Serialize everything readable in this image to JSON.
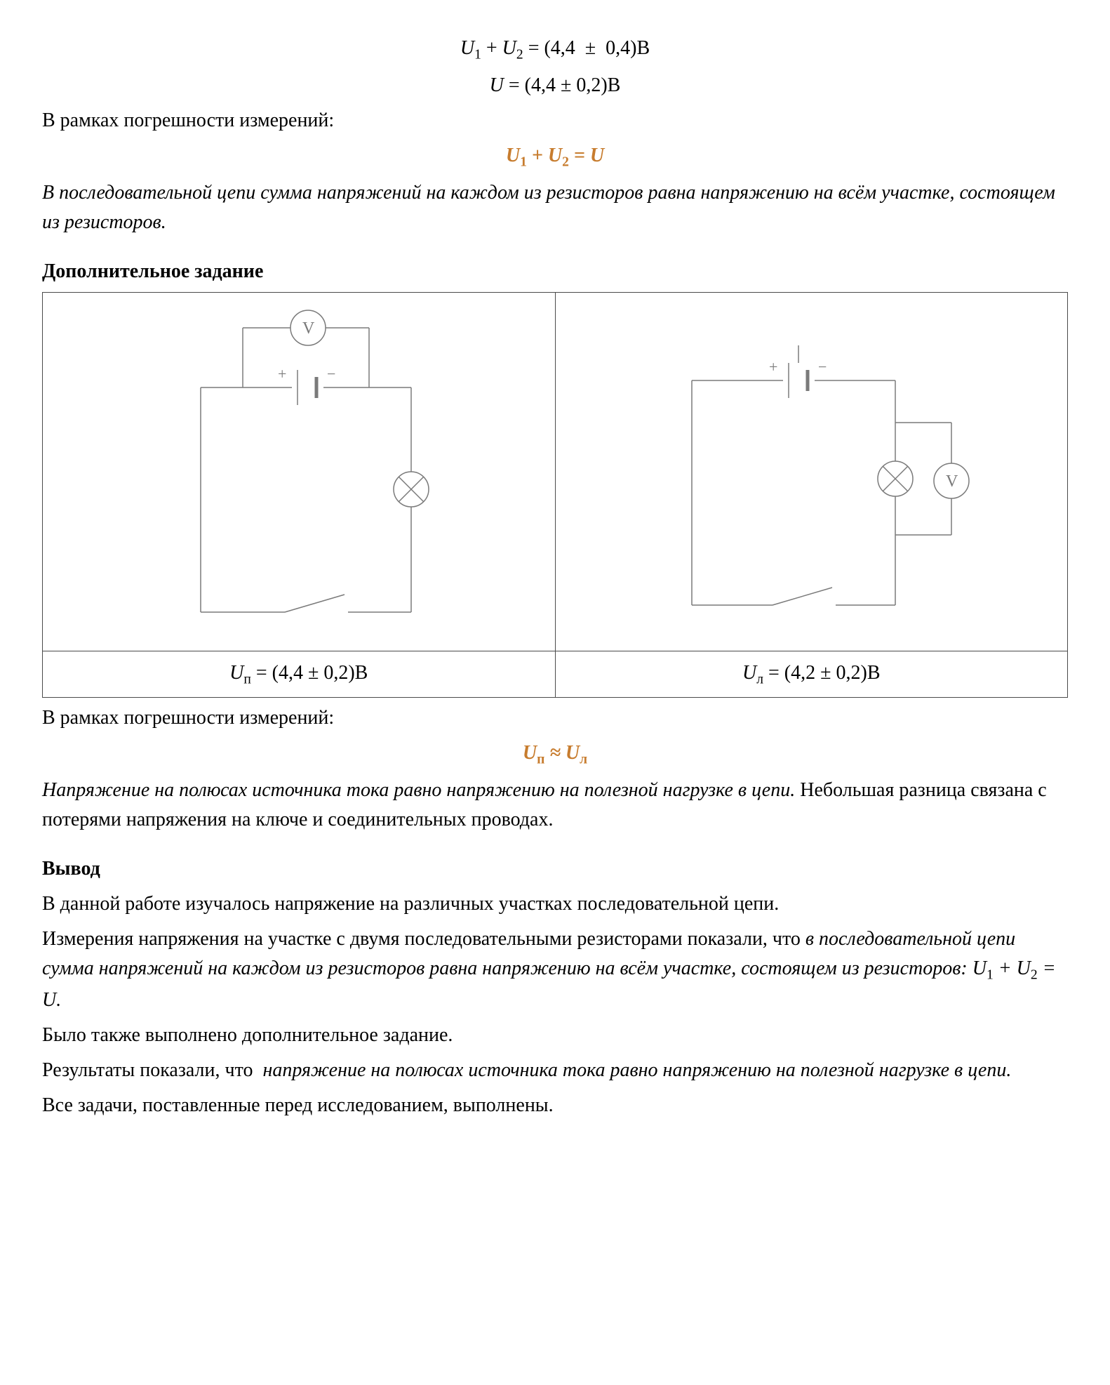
{
  "equations_top": {
    "line1_html": "<span class='math'>U</span><span class='sub'>1</span> + <span class='math'>U</span><span class='sub'>2</span> = (4,4&nbsp; ± &nbsp;0,4)В",
    "line2_html": "<span class='math'>U</span> = (4,4 ± 0,2)В"
  },
  "within_error_label": "В рамках погрешности измерений:",
  "eq_highlight_1_html": "<span class='math'>U</span><span class='sub'>1</span> + <span class='math'>U</span><span class='sub'>2</span> = <span class='math'>U</span>",
  "statement_1": "В последовательной цепи сумма напряжений на каждом из резисторов равна напряжению на всём участке, состоящем из резисторов.",
  "additional_task_title": "Дополнительное задание",
  "circuits": {
    "left_caption_html": "<span class='math'>U</span><span class='sub'>п</span> = (4,4 ± 0,2)В",
    "right_caption_html": "<span class='math'>U</span><span class='sub'>л</span> = (4,2 ± 0,2)В"
  },
  "eq_highlight_2_html": "<span class='math'>U</span><span class='sub'>п</span> ≈ <span class='math'>U</span><span class='sub'>л</span>",
  "statement_2_html": "<span class='italic'>Напряжение на полюсах источника тока равно напряжению на полезной нагрузке в цепи.</span> Небольшая разница связана с потерями напряжения на ключе и соединительных проводах.",
  "conclusion_title": "Вывод",
  "conclusion_p1": "В данной работе изучалось напряжение на различных участках последовательной цепи.",
  "conclusion_p2_html": "Измерения напряжения на участке с двумя последовательными резисторами показали, что <span class='italic'>в последовательной цепи сумма напряжений на каждом из резисторов равна напряжению на всём участке, состоящем из резисторов: <span class='math'>U</span><span class='sub'>1</span> + <span class='math'>U</span><span class='sub'>2</span> = <span class='math'>U</span>.</span>",
  "conclusion_p3": "Было также выполнено дополнительное задание.",
  "conclusion_p4_html": "Результаты показали, что&nbsp; <span class='italic'>напряжение на полюсах источника тока равно напряжению на полезной нагрузке в цепи.</span>",
  "conclusion_p5": "Все задачи, поставленные перед исследованием, выполнены.",
  "colors": {
    "highlight": "#c77c2e",
    "circuit_stroke": "#7a7a7a",
    "border": "#4a4a4a"
  }
}
